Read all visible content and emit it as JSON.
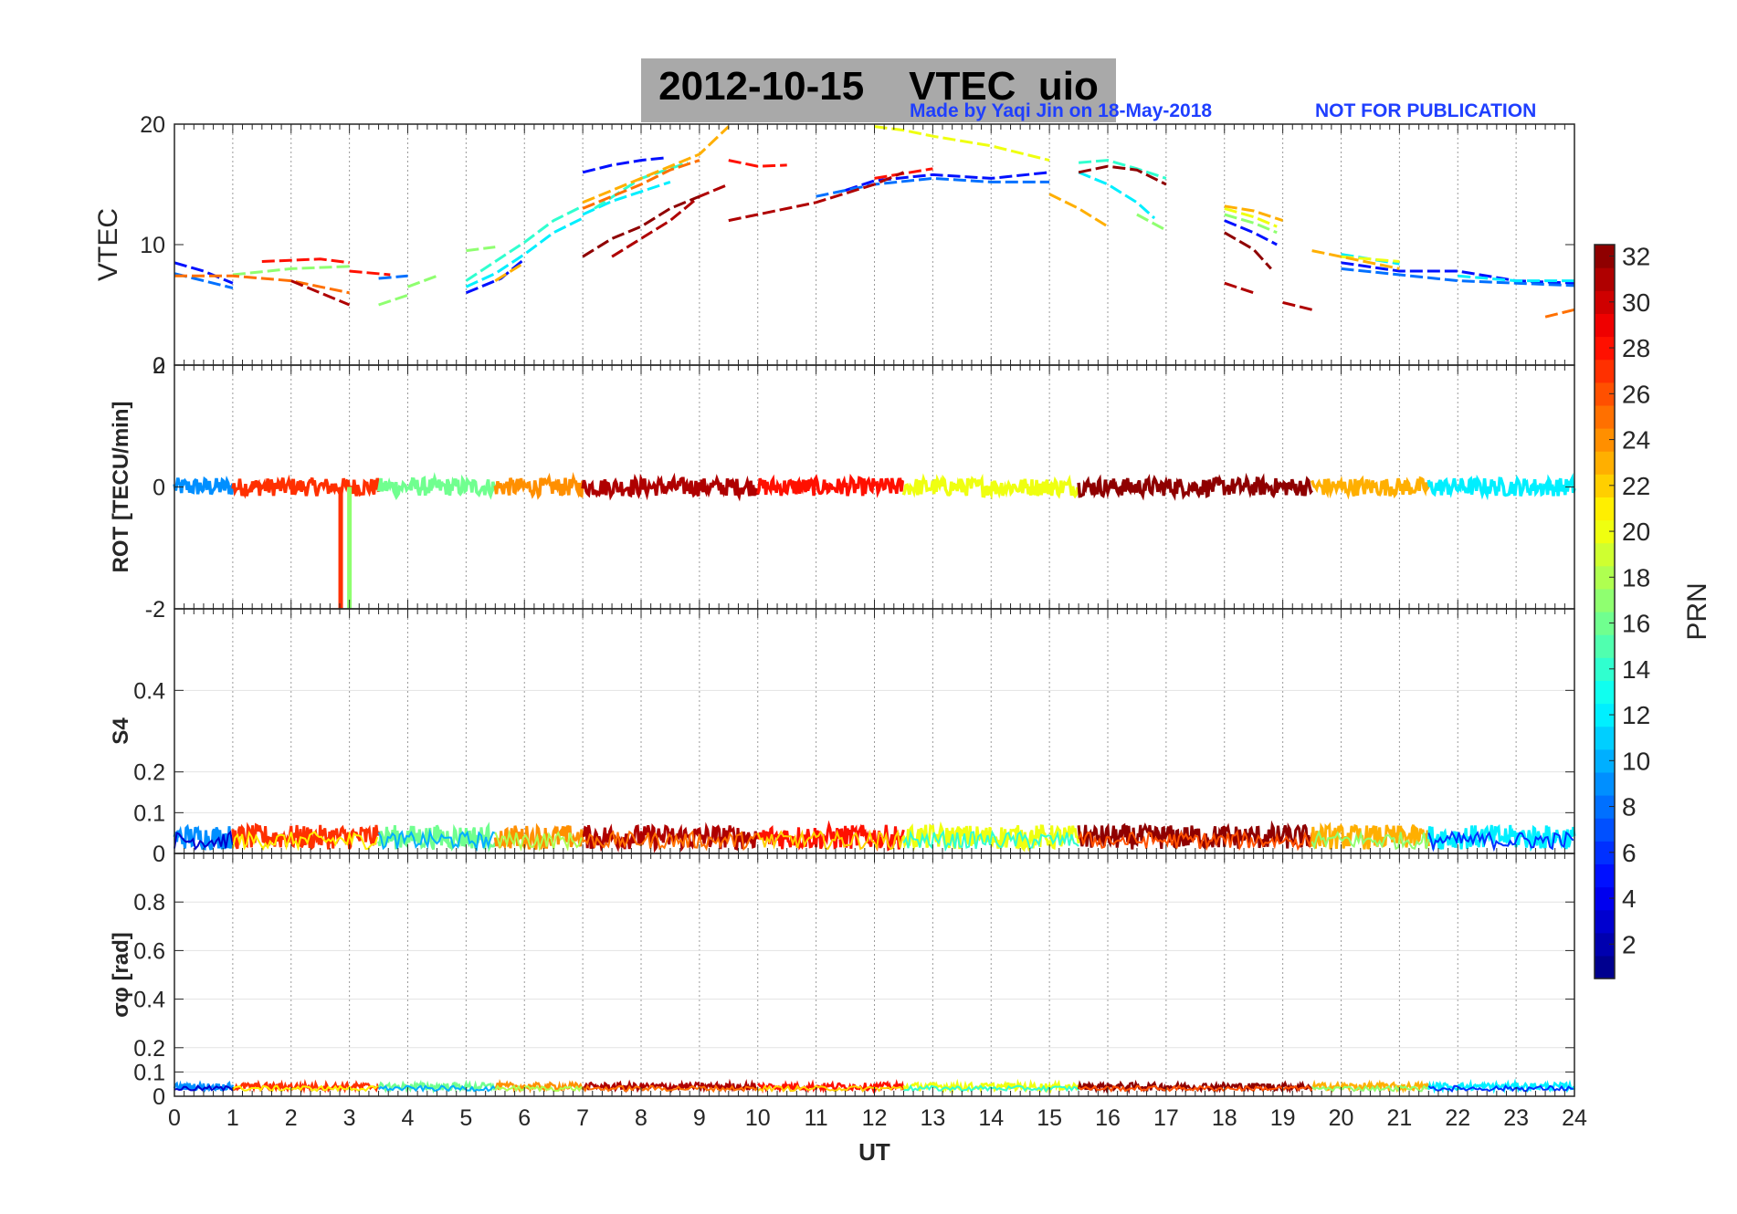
{
  "figure": {
    "title": "2012-10-15    VTEC  uio",
    "made_by": "Made by Yaqi Jin on 18-May-2018",
    "notice": "NOT FOR PUBLICATION"
  },
  "chart_data": [
    {
      "type": "line",
      "panel": "vtec",
      "ylabel": "VTEC",
      "xlim": [
        0,
        24
      ],
      "ylim": [
        0,
        20
      ],
      "yticks": [
        0,
        10,
        20
      ],
      "grid": "vertical dotted",
      "series": [
        {
          "prn": 5,
          "segments": [
            [
              [
                0.0,
                8.5
              ],
              [
                0.5,
                7.8
              ],
              [
                1.0,
                6.8
              ]
            ],
            [
              [
                5.0,
                6.0
              ],
              [
                5.6,
                7.2
              ],
              [
                6.0,
                8.8
              ]
            ],
            [
              [
                7.0,
                16.0
              ],
              [
                7.5,
                16.6
              ],
              [
                8.0,
                17.0
              ],
              [
                8.4,
                17.2
              ]
            ],
            [
              [
                11.5,
                14.5
              ],
              [
                12.0,
                15.3
              ],
              [
                13.0,
                15.8
              ],
              [
                14.0,
                15.5
              ],
              [
                15.0,
                16.0
              ]
            ],
            [
              [
                18.0,
                12.0
              ],
              [
                18.5,
                11.0
              ],
              [
                18.9,
                10.0
              ]
            ],
            [
              [
                20.0,
                8.5
              ],
              [
                21.0,
                7.8
              ],
              [
                22.0,
                7.8
              ],
              [
                23.0,
                7.0
              ],
              [
                24.0,
                6.8
              ]
            ]
          ]
        },
        {
          "prn": 8,
          "segments": [
            [
              [
                0.0,
                7.6
              ],
              [
                0.5,
                7.0
              ],
              [
                1.0,
                6.4
              ]
            ],
            [
              [
                3.5,
                7.2
              ],
              [
                4.0,
                7.4
              ]
            ],
            [
              [
                11.0,
                14.0
              ],
              [
                12.0,
                15.0
              ],
              [
                13.0,
                15.5
              ],
              [
                14.0,
                15.2
              ],
              [
                15.0,
                15.2
              ]
            ],
            [
              [
                20.0,
                8.0
              ],
              [
                21.0,
                7.5
              ],
              [
                22.0,
                7.0
              ],
              [
                23.0,
                6.8
              ],
              [
                24.0,
                6.6
              ]
            ]
          ]
        },
        {
          "prn": 12,
          "segments": [
            [
              [
                5.0,
                6.5
              ],
              [
                5.5,
                7.6
              ],
              [
                6.0,
                9.2
              ],
              [
                6.5,
                11.0
              ],
              [
                7.0,
                12.2
              ]
            ],
            [
              [
                7.0,
                12.5
              ],
              [
                7.5,
                13.6
              ],
              [
                8.0,
                14.4
              ],
              [
                8.5,
                15.2
              ]
            ],
            [
              [
                15.5,
                16.0
              ],
              [
                16.0,
                15.0
              ],
              [
                16.5,
                13.5
              ],
              [
                16.8,
                12.2
              ]
            ],
            [
              [
                20.0,
                9.2
              ],
              [
                20.5,
                8.8
              ],
              [
                21.0,
                8.4
              ]
            ],
            [
              [
                22.0,
                7.4
              ],
              [
                23.0,
                7.0
              ],
              [
                24.0,
                7.0
              ]
            ]
          ]
        },
        {
          "prn": 14,
          "segments": [
            [
              [
                5.0,
                7.0
              ],
              [
                5.5,
                8.6
              ],
              [
                6.0,
                10.2
              ],
              [
                6.5,
                12.0
              ],
              [
                7.0,
                13.2
              ]
            ],
            [
              [
                15.5,
                16.8
              ],
              [
                16.0,
                17.0
              ],
              [
                16.5,
                16.3
              ],
              [
                17.0,
                15.5
              ]
            ],
            [
              [
                7.2,
                13.0
              ],
              [
                8.0,
                15.5
              ],
              [
                8.8,
                16.8
              ]
            ]
          ]
        },
        {
          "prn": 17,
          "segments": [
            [
              [
                1.0,
                7.5
              ],
              [
                2.0,
                8.0
              ],
              [
                3.0,
                8.2
              ]
            ],
            [
              [
                3.5,
                5.0
              ],
              [
                4.0,
                5.8
              ]
            ],
            [
              [
                4.0,
                6.5
              ],
              [
                4.5,
                7.4
              ]
            ],
            [
              [
                5.0,
                9.5
              ],
              [
                5.5,
                9.8
              ]
            ],
            [
              [
                16.5,
                12.5
              ],
              [
                17.0,
                11.2
              ]
            ],
            [
              [
                18.0,
                12.5
              ],
              [
                18.5,
                11.8
              ],
              [
                18.9,
                11.0
              ]
            ]
          ]
        },
        {
          "prn": 20,
          "segments": [
            [
              [
                12.0,
                19.8
              ],
              [
                12.5,
                19.5
              ],
              [
                13.0,
                19.0
              ],
              [
                14.0,
                18.2
              ],
              [
                15.0,
                17.0
              ]
            ],
            [
              [
                18.0,
                13.0
              ],
              [
                18.5,
                12.3
              ],
              [
                18.9,
                11.5
              ]
            ],
            [
              [
                20.0,
                9.0
              ],
              [
                21.0,
                8.6
              ]
            ]
          ]
        },
        {
          "prn": 23,
          "segments": [
            [
              [
                7.0,
                13.5
              ],
              [
                8.0,
                15.5
              ],
              [
                9.0,
                17.5
              ],
              [
                9.5,
                19.8
              ]
            ],
            [
              [
                5.5,
                7.0
              ],
              [
                6.0,
                8.5
              ]
            ],
            [
              [
                15.0,
                14.2
              ],
              [
                15.5,
                13.0
              ],
              [
                16.0,
                11.5
              ]
            ],
            [
              [
                18.0,
                13.2
              ],
              [
                18.5,
                12.8
              ],
              [
                19.0,
                12.0
              ]
            ],
            [
              [
                19.5,
                9.5
              ],
              [
                20.5,
                8.5
              ],
              [
                21.0,
                8.0
              ]
            ]
          ]
        },
        {
          "prn": 25,
          "segments": [
            [
              [
                0.0,
                7.4
              ],
              [
                1.0,
                7.4
              ],
              [
                2.0,
                7.0
              ],
              [
                3.0,
                6.0
              ]
            ],
            [
              [
                7.0,
                13.0
              ],
              [
                8.0,
                15.0
              ],
              [
                8.5,
                16.2
              ],
              [
                9.0,
                17.0
              ]
            ],
            [
              [
                23.5,
                4.0
              ],
              [
                24.0,
                4.6
              ]
            ]
          ]
        },
        {
          "prn": 28,
          "segments": [
            [
              [
                1.5,
                8.6
              ],
              [
                2.5,
                8.8
              ],
              [
                3.0,
                8.5
              ]
            ],
            [
              [
                3.0,
                7.8
              ],
              [
                3.7,
                7.5
              ]
            ],
            [
              [
                9.5,
                17.0
              ],
              [
                10.0,
                16.5
              ],
              [
                10.5,
                16.6
              ]
            ],
            [
              [
                12.0,
                15.5
              ],
              [
                13.0,
                16.3
              ]
            ]
          ]
        },
        {
          "prn": 31,
          "segments": [
            [
              [
                2.0,
                7.0
              ],
              [
                2.5,
                6.0
              ],
              [
                3.0,
                5.0
              ]
            ],
            [
              [
                7.5,
                9.0
              ],
              [
                8.5,
                12.0
              ],
              [
                9.0,
                14.0
              ],
              [
                9.5,
                15.0
              ]
            ],
            [
              [
                9.5,
                12.0
              ],
              [
                10.0,
                12.5
              ],
              [
                11.0,
                13.5
              ],
              [
                12.0,
                15.0
              ],
              [
                12.5,
                16.0
              ]
            ],
            [
              [
                18.0,
                6.8
              ],
              [
                18.5,
                6.0
              ]
            ],
            [
              [
                19.0,
                5.2
              ],
              [
                19.5,
                4.6
              ]
            ]
          ]
        },
        {
          "prn": 32,
          "segments": [
            [
              [
                7.0,
                9.0
              ],
              [
                7.5,
                10.5
              ],
              [
                8.0,
                11.5
              ],
              [
                8.5,
                13.0
              ],
              [
                9.0,
                14.0
              ]
            ],
            [
              [
                15.5,
                16.0
              ],
              [
                16.0,
                16.5
              ],
              [
                16.5,
                16.2
              ],
              [
                17.0,
                15.0
              ]
            ],
            [
              [
                18.0,
                11.0
              ],
              [
                18.5,
                9.6
              ],
              [
                18.8,
                8.0
              ]
            ]
          ]
        }
      ]
    },
    {
      "type": "line",
      "panel": "rot",
      "ylabel": "ROT [TECU/min]",
      "xlim": [
        0,
        24
      ],
      "ylim": [
        -2,
        2
      ],
      "yticks": [
        -2,
        0,
        2
      ],
      "grid": "vertical dotted",
      "baseline": 0,
      "noise_amplitude": 0.15,
      "spikes": [
        {
          "x": 2.85,
          "y_from": 0,
          "y_to": -2,
          "prn": 27
        },
        {
          "x": 3.0,
          "y_from": 0,
          "y_to": -2,
          "prn": 17
        }
      ],
      "prn_schedule": [
        [
          0,
          1,
          9
        ],
        [
          1,
          3.5,
          27
        ],
        [
          3.5,
          5.5,
          16
        ],
        [
          5.5,
          7,
          24
        ],
        [
          7,
          10,
          31
        ],
        [
          10,
          12.5,
          28
        ],
        [
          12.5,
          15.5,
          20
        ],
        [
          15.5,
          19.5,
          32
        ],
        [
          19.5,
          21.5,
          23
        ],
        [
          21.5,
          24,
          12
        ]
      ]
    },
    {
      "type": "line",
      "panel": "s4",
      "ylabel": "S4",
      "xlim": [
        0,
        24
      ],
      "ylim": [
        0,
        0.6
      ],
      "yticks": [
        0,
        0.1,
        0.2,
        0.4
      ],
      "grid": "vertical dotted",
      "baseline": 0.04,
      "noise_amplitude": 0.03,
      "prn_schedule": [
        [
          0,
          1,
          9
        ],
        [
          1,
          3.5,
          27
        ],
        [
          3.5,
          5.5,
          16
        ],
        [
          5.5,
          7,
          24
        ],
        [
          7,
          10,
          31
        ],
        [
          10,
          12.5,
          28
        ],
        [
          12.5,
          15.5,
          20
        ],
        [
          15.5,
          19.5,
          32
        ],
        [
          19.5,
          21.5,
          23
        ],
        [
          21.5,
          24,
          12
        ]
      ]
    },
    {
      "type": "line",
      "panel": "sigma_phi",
      "ylabel": "σφ [rad]",
      "xlabel": "UT",
      "xlim": [
        0,
        24
      ],
      "ylim": [
        0,
        1
      ],
      "yticks": [
        0,
        0.1,
        0.2,
        0.4,
        0.6,
        0.8
      ],
      "xticks": [
        0,
        1,
        2,
        3,
        4,
        5,
        6,
        7,
        8,
        9,
        10,
        11,
        12,
        13,
        14,
        15,
        16,
        17,
        18,
        19,
        20,
        21,
        22,
        23,
        24
      ],
      "grid": "vertical dotted",
      "baseline": 0.04,
      "noise_amplitude": 0.015,
      "prn_schedule": [
        [
          0,
          1,
          9
        ],
        [
          1,
          3.5,
          27
        ],
        [
          3.5,
          5.5,
          16
        ],
        [
          5.5,
          7,
          24
        ],
        [
          7,
          10,
          31
        ],
        [
          10,
          12.5,
          28
        ],
        [
          12.5,
          15.5,
          20
        ],
        [
          15.5,
          19.5,
          32
        ],
        [
          19.5,
          21.5,
          23
        ],
        [
          21.5,
          24,
          12
        ]
      ]
    }
  ],
  "colorbar": {
    "label": "PRN",
    "range": [
      1,
      32
    ],
    "ticks": [
      2,
      4,
      6,
      8,
      10,
      12,
      14,
      16,
      18,
      20,
      22,
      24,
      26,
      28,
      30,
      32
    ],
    "colormap": "jet"
  }
}
